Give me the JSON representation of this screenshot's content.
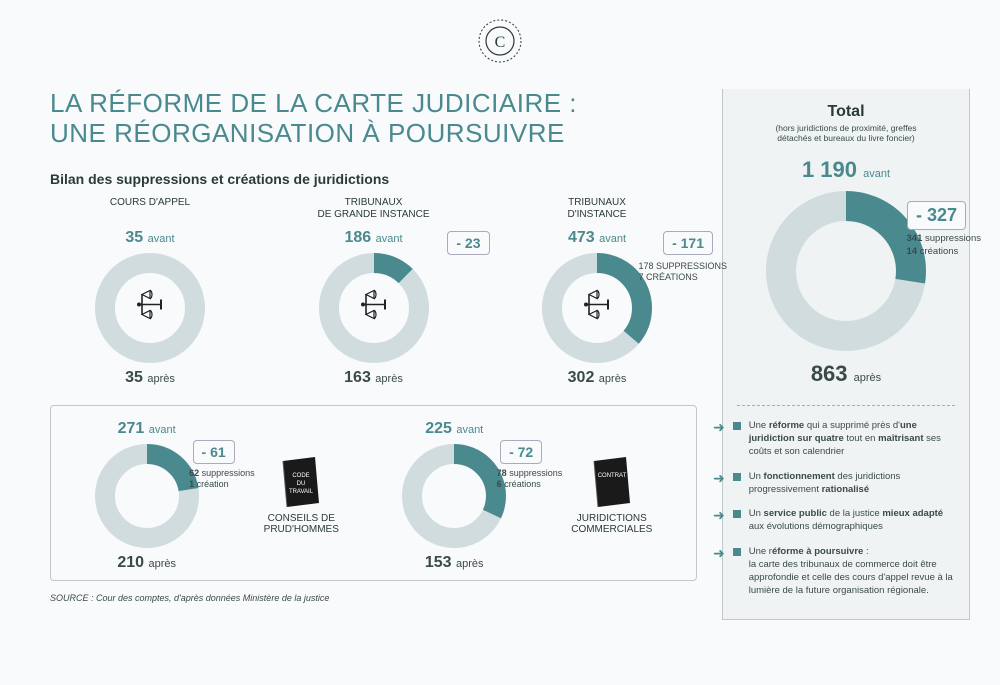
{
  "colors": {
    "teal": "#4a8a8f",
    "ring_light": "#d0dcde",
    "text_dark": "#2a3a3a",
    "text_body": "#3a4a4a",
    "bg_sidebar": "#f0f3f4",
    "border": "#c0c8cc"
  },
  "title": "LA RÉFORME DE LA CARTE JUDICIAIRE :\nUNE RÉORGANISATION À POURSUIVRE",
  "subtitle": "Bilan des suppressions et créations de juridictions",
  "source": "SOURCE : Cour des comptes, d'après données Ministère de la justice",
  "charts": [
    {
      "label": "COURS D'APPEL",
      "before": 35,
      "after": 35,
      "change": 0,
      "pct_reduced": 0,
      "suppressions": null,
      "creations": null,
      "icon": "scales"
    },
    {
      "label": "TRIBUNAUX\nDE GRANDE INSTANCE",
      "before": 186,
      "after": 163,
      "change": -23,
      "pct_reduced": 12.4,
      "suppressions": null,
      "creations": null,
      "icon": "scales"
    },
    {
      "label": "TRIBUNAUX\nD'INSTANCE",
      "before": 473,
      "after": 302,
      "change": -171,
      "pct_reduced": 36.2,
      "suppressions": 178,
      "creations": 7,
      "icon": "scales"
    }
  ],
  "row2": [
    {
      "before": 271,
      "after": 210,
      "change": -61,
      "pct_reduced": 22.5,
      "suppressions": 62,
      "creations": 1,
      "book_label": "CODE\nDU\nTRAVAIL",
      "pair_label": "CONSEILS DE\nPRUD'HOMMES"
    },
    {
      "before": 225,
      "after": 153,
      "change": -72,
      "pct_reduced": 32.0,
      "suppressions": 78,
      "creations": 6,
      "book_label": "CONTRAT",
      "pair_label": "JURIDICTIONS\nCOMMERCIALES"
    }
  ],
  "total": {
    "title": "Total",
    "sub": "(hors juridictions de proximité, greffes\ndétachés et bureaux du livre foncier)",
    "before": 1190,
    "before_display": "1 190",
    "after": 863,
    "change": -327,
    "change_display": "- 327",
    "pct_reduced": 27.5,
    "suppressions": 341,
    "creations": 14
  },
  "bullets": [
    "Une <b>réforme</b> qui a supprimé près d'<b>une juridiction sur quatre</b> tout en <b>maîtrisant</b> ses coûts et son calendrier",
    "Un <b>fonctionnement</b> des juridictions progressivement <b>rationalisé</b>",
    "Un <b>service public</b> de la justice <b>mieux adapté</b> aux évolutions démographiques",
    "Une r<b>éforme à poursuivre</b> :<br>la carte des tribunaux de commerce doit être approfondie et celle des cours d'appel revue à la lumière de la future organisation régionale."
  ],
  "labels": {
    "avant": "avant",
    "apres": "après",
    "suppressions": "suppressions",
    "creations": "créations",
    "suppressions_caps": "SUPPRESSIONS",
    "creations_caps": "CRÉATIONS",
    "creation_sing": "création"
  }
}
